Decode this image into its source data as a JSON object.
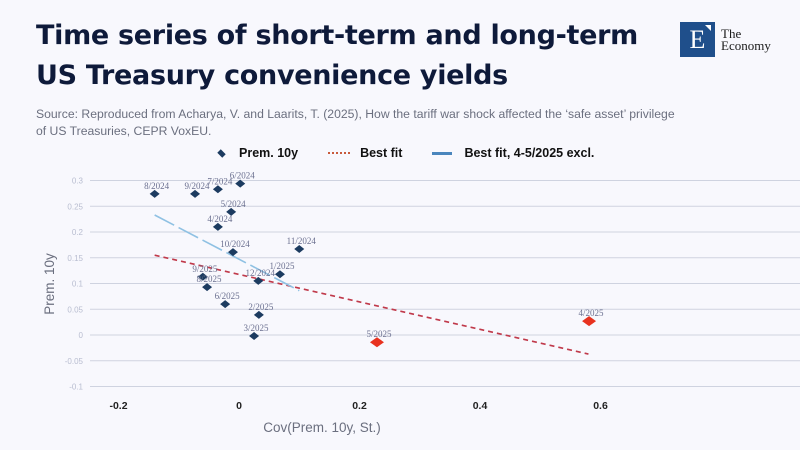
{
  "header": {
    "title": "Time series of short-term and long-term US Treasury convenience yields",
    "source": "Source: Reproduced from Acharya, V. and Laarits, T. (2025), How the tariff war shock affected the ‘safe asset’ privilege of US Treasuries, CEPR VoxEU."
  },
  "logo": {
    "letter": "E",
    "line1": "The",
    "line2": "Economy",
    "color": "#1f4f8b"
  },
  "colors": {
    "points": "#1c3b60",
    "highlight_points": "#e8321f",
    "best_fit": "#c0394a",
    "best_fit_excl": "#8fc1e3"
  },
  "chart_data": {
    "type": "scatter",
    "title": "Time series of short-term and long-term US Treasury convenience yields",
    "xlabel": "Cov(Prem. 10y, St.)",
    "ylabel": "Prem. 10y",
    "xlim": [
      -0.3,
      0.7
    ],
    "ylim": [
      -0.1,
      0.3
    ],
    "x_ticks": [
      "-0.2",
      "0",
      "0.2",
      "0.4",
      "0.6"
    ],
    "x_tick_values": [
      -0.2,
      0,
      0.2,
      0.4,
      0.6
    ],
    "y_ticks": [
      "0.3",
      "0.25",
      "0.2",
      "0.15",
      "0.1",
      "0.05",
      "0",
      "-0.05",
      "-0.1"
    ],
    "y_tick_values": [
      0.3,
      0.25,
      0.2,
      0.15,
      0.1,
      0.05,
      0,
      -0.05,
      -0.1
    ],
    "grid": "horizontal",
    "legend": {
      "placement": "top",
      "entries": [
        "Prem. 10y",
        "Best fit",
        "Best fit, 4-5/2025 excl."
      ]
    },
    "series": [
      {
        "name": "Prem. 10y",
        "points": [
          {
            "label": "8/2024",
            "x": -0.14,
            "y": 0.274,
            "highlight": false
          },
          {
            "label": "9/2024",
            "x": -0.073,
            "y": 0.274,
            "highlight": false
          },
          {
            "label": "7/2024",
            "x": -0.035,
            "y": 0.283,
            "highlight": false
          },
          {
            "label": "6/2024",
            "x": 0.002,
            "y": 0.294,
            "highlight": false
          },
          {
            "label": "5/2024",
            "x": -0.013,
            "y": 0.239,
            "highlight": false
          },
          {
            "label": "4/2024",
            "x": -0.035,
            "y": 0.21,
            "highlight": false
          },
          {
            "label": "10/2024",
            "x": -0.01,
            "y": 0.161,
            "highlight": false
          },
          {
            "label": "11/2024",
            "x": 0.1,
            "y": 0.167,
            "highlight": false
          },
          {
            "label": "9/2025",
            "x": -0.06,
            "y": 0.113,
            "highlight": false
          },
          {
            "label": "8/2025",
            "x": -0.053,
            "y": 0.093,
            "highlight": false
          },
          {
            "label": "12/2024",
            "x": 0.032,
            "y": 0.105,
            "highlight": false
          },
          {
            "label": "1/2025",
            "x": 0.068,
            "y": 0.118,
            "highlight": false
          },
          {
            "label": "6/2025",
            "x": -0.023,
            "y": 0.06,
            "highlight": false
          },
          {
            "label": "2/2025",
            "x": 0.033,
            "y": 0.039,
            "highlight": false
          },
          {
            "label": "3/2025",
            "x": 0.025,
            "y": -0.002,
            "highlight": false
          },
          {
            "label": "5/2025",
            "x": 0.229,
            "y": -0.014,
            "highlight": true
          },
          {
            "label": "4/2025",
            "x": 0.581,
            "y": 0.027,
            "highlight": true
          }
        ]
      },
      {
        "name": "Best fit",
        "style": "dashed",
        "line": [
          {
            "x": -0.14,
            "y": 0.155
          },
          {
            "x": 0.58,
            "y": -0.037
          }
        ]
      },
      {
        "name": "Best fit, 4-5/2025 excl.",
        "style": "long-dash",
        "line": [
          {
            "x": -0.14,
            "y": 0.233
          },
          {
            "x": 0.1,
            "y": 0.086
          }
        ]
      }
    ]
  }
}
